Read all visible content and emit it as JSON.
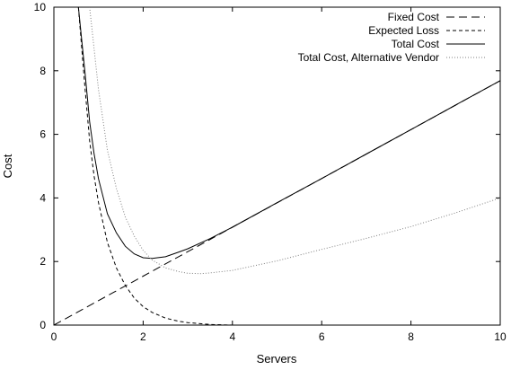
{
  "chart_data": {
    "type": "line",
    "title": "",
    "xlabel": "Servers",
    "ylabel": "Cost",
    "xlim": [
      0,
      10
    ],
    "ylim": [
      0,
      10
    ],
    "xticks": [
      "0",
      "2",
      "4",
      "6",
      "8",
      "10"
    ],
    "yticks": [
      "0",
      "2",
      "4",
      "6",
      "8",
      "10"
    ],
    "grid": false,
    "legend_position": "top-right",
    "series": [
      {
        "name": "Fixed Cost",
        "style": "long-dash",
        "color": "#000000",
        "x": [
          0,
          2,
          4,
          6,
          8,
          10
        ],
        "y": [
          0,
          1.54,
          3.08,
          4.61,
          6.15,
          7.69
        ]
      },
      {
        "name": "Expected Loss",
        "style": "short-dash",
        "color": "#000000",
        "x": [
          0.55,
          0.7,
          0.8,
          0.9,
          1.0,
          1.2,
          1.4,
          1.6,
          1.8,
          2.0,
          2.2,
          2.5,
          2.8,
          3.0,
          3.5,
          4.0
        ],
        "y": [
          10.0,
          7.4,
          5.8,
          4.7,
          3.85,
          2.6,
          1.8,
          1.25,
          0.85,
          0.58,
          0.4,
          0.22,
          0.12,
          0.08,
          0.02,
          0.0
        ]
      },
      {
        "name": "Total Cost",
        "style": "solid",
        "color": "#000000",
        "x": [
          0.55,
          0.7,
          0.8,
          0.9,
          1.0,
          1.2,
          1.4,
          1.6,
          1.8,
          2.0,
          2.2,
          2.5,
          2.8,
          3.0,
          3.5,
          4.0,
          5.0,
          6.0,
          7.0,
          8.0,
          9.0,
          10.0
        ],
        "y": [
          10.0,
          7.9,
          6.4,
          5.4,
          4.6,
          3.5,
          2.9,
          2.48,
          2.24,
          2.12,
          2.1,
          2.15,
          2.3,
          2.4,
          2.72,
          3.08,
          3.85,
          4.61,
          5.38,
          6.15,
          6.92,
          7.69
        ]
      },
      {
        "name": "Total Cost, Alternative Vendor",
        "style": "dotted",
        "color": "#808080",
        "x": [
          0.8,
          1.0,
          1.2,
          1.4,
          1.6,
          1.8,
          2.0,
          2.2,
          2.5,
          2.8,
          3.0,
          3.3,
          3.5,
          4.0,
          5.0,
          6.0,
          7.0,
          8.0,
          9.0,
          10.0
        ],
        "y": [
          10.0,
          7.4,
          5.5,
          4.3,
          3.4,
          2.8,
          2.35,
          2.05,
          1.8,
          1.68,
          1.63,
          1.62,
          1.64,
          1.72,
          2.02,
          2.38,
          2.73,
          3.1,
          3.53,
          4.0
        ]
      }
    ]
  }
}
